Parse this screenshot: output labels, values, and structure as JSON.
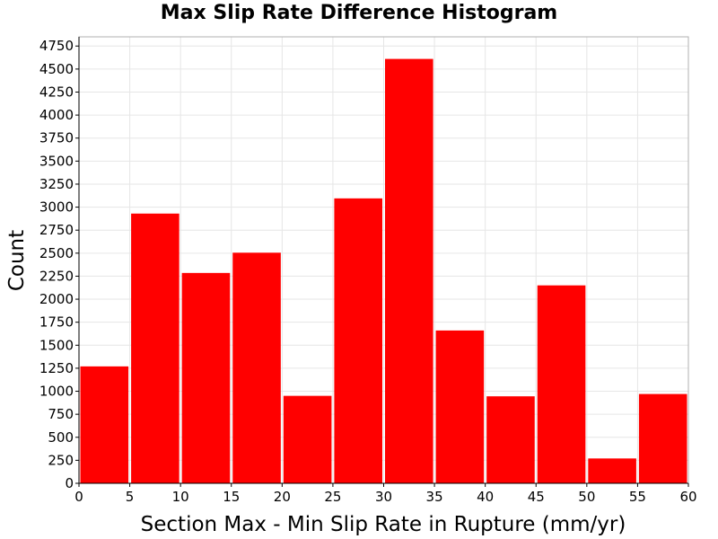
{
  "chart_data": {
    "type": "bar",
    "title": "Max Slip Rate Difference Histogram",
    "xlabel": "Section Max - Min Slip Rate in Rupture (mm/yr)",
    "ylabel": "Count",
    "xlim": [
      0,
      60
    ],
    "ylim": [
      0,
      4850
    ],
    "bin_width": 5,
    "bins": [
      {
        "start": 0,
        "end": 5,
        "value": 1270
      },
      {
        "start": 5,
        "end": 10,
        "value": 2930
      },
      {
        "start": 10,
        "end": 15,
        "value": 2285
      },
      {
        "start": 15,
        "end": 20,
        "value": 2505
      },
      {
        "start": 20,
        "end": 25,
        "value": 950
      },
      {
        "start": 25,
        "end": 30,
        "value": 3095
      },
      {
        "start": 30,
        "end": 35,
        "value": 4610
      },
      {
        "start": 35,
        "end": 40,
        "value": 1660
      },
      {
        "start": 40,
        "end": 45,
        "value": 945
      },
      {
        "start": 45,
        "end": 50,
        "value": 2150
      },
      {
        "start": 50,
        "end": 55,
        "value": 270
      },
      {
        "start": 55,
        "end": 60,
        "value": 970
      }
    ],
    "x_ticks": [
      "0",
      "5",
      "10",
      "15",
      "20",
      "25",
      "30",
      "35",
      "40",
      "45",
      "50",
      "55",
      "60"
    ],
    "y_ticks": [
      "0",
      "250",
      "500",
      "750",
      "1000",
      "1250",
      "1500",
      "1750",
      "2000",
      "2250",
      "2500",
      "2750",
      "3000",
      "3250",
      "3500",
      "3750",
      "4000",
      "4250",
      "4500",
      "4750"
    ],
    "bar_color": "#ff0000",
    "grid": true,
    "legend": false
  }
}
